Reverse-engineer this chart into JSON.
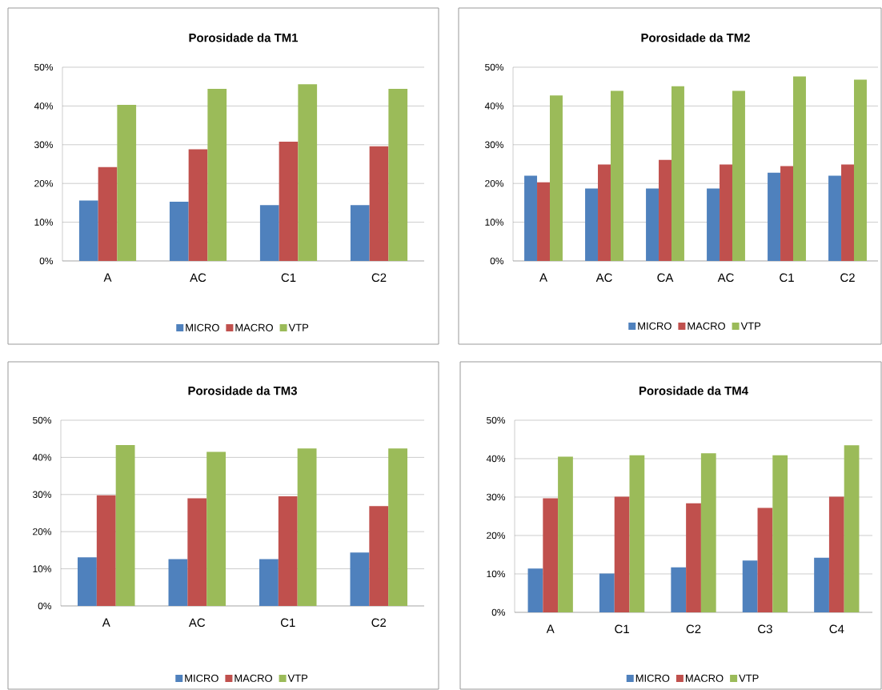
{
  "chart_data": [
    {
      "type": "bar",
      "title": "Porosidade da TM1",
      "categories": [
        "A",
        "AC",
        "C1",
        "C2"
      ],
      "series": [
        {
          "name": "MICRO",
          "color": "#4f81bd",
          "values": [
            15.6,
            15.3,
            14.4,
            14.4
          ]
        },
        {
          "name": "MACRO",
          "color": "#c0504d",
          "values": [
            24.2,
            28.8,
            30.8,
            29.6
          ]
        },
        {
          "name": "VTP",
          "color": "#9bbb59",
          "values": [
            40.3,
            44.4,
            45.6,
            44.4
          ]
        }
      ],
      "ylim": [
        0,
        50
      ],
      "yticks": [
        {
          "value": 0,
          "label": "0%"
        },
        {
          "value": 10,
          "label": "10%"
        },
        {
          "value": 20,
          "label": "20%"
        },
        {
          "value": 30,
          "label": "30%"
        },
        {
          "value": 40,
          "label": "40%"
        },
        {
          "value": 50,
          "label": "50%"
        }
      ],
      "grid": "y",
      "legend": "bottom"
    },
    {
      "type": "bar",
      "title": "Porosidade da TM2",
      "categories": [
        "A",
        "AC",
        "CA",
        "AC",
        "C1",
        "C2"
      ],
      "series": [
        {
          "name": "MICRO",
          "color": "#4f81bd",
          "values": [
            22.0,
            18.7,
            18.7,
            18.7,
            22.8,
            22.0
          ]
        },
        {
          "name": "MACRO",
          "color": "#c0504d",
          "values": [
            20.3,
            24.9,
            26.1,
            24.9,
            24.5,
            24.9
          ]
        },
        {
          "name": "VTP",
          "color": "#9bbb59",
          "values": [
            42.7,
            43.9,
            45.1,
            43.9,
            47.6,
            46.8
          ]
        }
      ],
      "ylim": [
        0,
        50
      ],
      "yticks": [
        {
          "value": 0,
          "label": "0%"
        },
        {
          "value": 10,
          "label": "10%"
        },
        {
          "value": 20,
          "label": "20%"
        },
        {
          "value": 30,
          "label": "30%"
        },
        {
          "value": 40,
          "label": "40%"
        },
        {
          "value": 50,
          "label": "50%"
        }
      ],
      "grid": "y",
      "legend": "bottom"
    },
    {
      "type": "bar",
      "title": "Porosidade da TM3",
      "categories": [
        "A",
        "AC",
        "C1",
        "C2"
      ],
      "series": [
        {
          "name": "MICRO",
          "color": "#4f81bd",
          "values": [
            13.1,
            12.6,
            12.6,
            14.4
          ]
        },
        {
          "name": "MACRO",
          "color": "#c0504d",
          "values": [
            29.8,
            29.0,
            29.5,
            26.9
          ]
        },
        {
          "name": "VTP",
          "color": "#9bbb59",
          "values": [
            43.3,
            41.5,
            42.4,
            42.4
          ]
        }
      ],
      "ylim": [
        0,
        50
      ],
      "yticks": [
        {
          "value": 0,
          "label": "0%"
        },
        {
          "value": 10,
          "label": "10%"
        },
        {
          "value": 20,
          "label": "20%"
        },
        {
          "value": 30,
          "label": "30%"
        },
        {
          "value": 40,
          "label": "40%"
        },
        {
          "value": 50,
          "label": "50%"
        }
      ],
      "grid": "y",
      "legend": "bottom"
    },
    {
      "type": "bar",
      "title": "Porosidade da TM4",
      "categories": [
        "A",
        "C1",
        "C2",
        "C3",
        "C4"
      ],
      "series": [
        {
          "name": "MICRO",
          "color": "#4f81bd",
          "values": [
            11.4,
            10.1,
            11.7,
            13.5,
            14.2
          ]
        },
        {
          "name": "MACRO",
          "color": "#c0504d",
          "values": [
            29.7,
            30.1,
            28.4,
            27.2,
            30.1
          ]
        },
        {
          "name": "VTP",
          "color": "#9bbb59",
          "values": [
            40.5,
            40.9,
            41.4,
            40.9,
            43.5
          ]
        }
      ],
      "ylim": [
        0,
        50
      ],
      "yticks": [
        {
          "value": 0,
          "label": "0%"
        },
        {
          "value": 10,
          "label": "10%"
        },
        {
          "value": 20,
          "label": "20%"
        },
        {
          "value": 30,
          "label": "30%"
        },
        {
          "value": 40,
          "label": "40%"
        },
        {
          "value": 50,
          "label": "50%"
        }
      ],
      "grid": "y",
      "legend": "bottom"
    }
  ]
}
